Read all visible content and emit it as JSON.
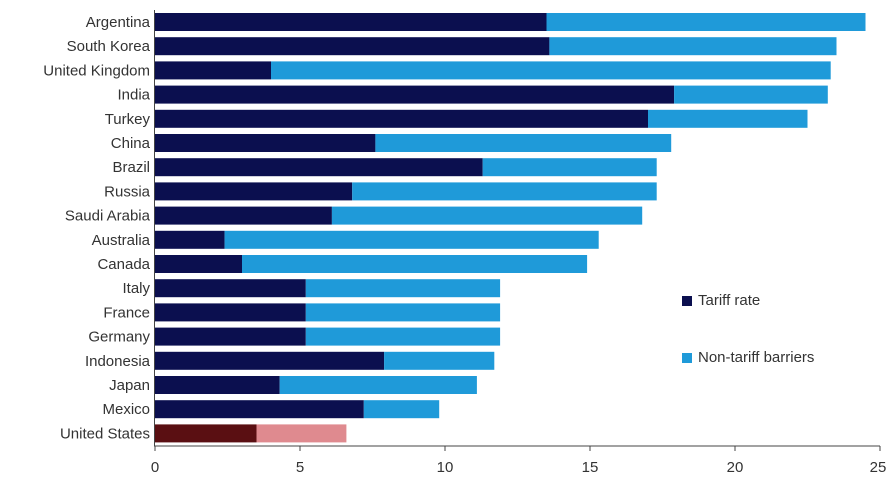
{
  "chart_data": {
    "type": "bar",
    "orientation": "horizontal",
    "stacked": true,
    "title": "",
    "xlabel": "",
    "ylabel": "",
    "xlim": [
      0,
      25
    ],
    "xticks": [
      0,
      5,
      10,
      15,
      20,
      25
    ],
    "grid": false,
    "legend_position": "right",
    "categories": [
      "Argentina",
      "South Korea",
      "United Kingdom",
      "India",
      "Turkey",
      "China",
      "Brazil",
      "Russia",
      "Saudi Arabia",
      "Australia",
      "Canada",
      "Italy",
      "France",
      "Germany",
      "Indonesia",
      "Japan",
      "Mexico",
      "United States"
    ],
    "series": [
      {
        "name": "Tariff rate",
        "color": "#0b0f4f",
        "values": [
          13.5,
          13.6,
          4.0,
          17.9,
          17.0,
          7.6,
          11.3,
          6.8,
          6.1,
          2.4,
          3.0,
          5.2,
          5.2,
          5.2,
          7.9,
          4.3,
          7.2,
          3.5
        ]
      },
      {
        "name": "Non-tariff barriers",
        "color": "#1f9ad9",
        "values": [
          11.0,
          9.9,
          19.3,
          5.3,
          5.5,
          10.2,
          6.0,
          10.5,
          10.7,
          12.9,
          11.9,
          6.7,
          6.7,
          6.7,
          3.8,
          6.8,
          2.6,
          3.1
        ]
      }
    ],
    "highlight": {
      "category": "United States",
      "colors": [
        "#5a0f12",
        "#df8a8f"
      ]
    }
  },
  "legend": {
    "tariff_label": "Tariff rate",
    "nontariff_label": "Non-tariff barriers"
  }
}
